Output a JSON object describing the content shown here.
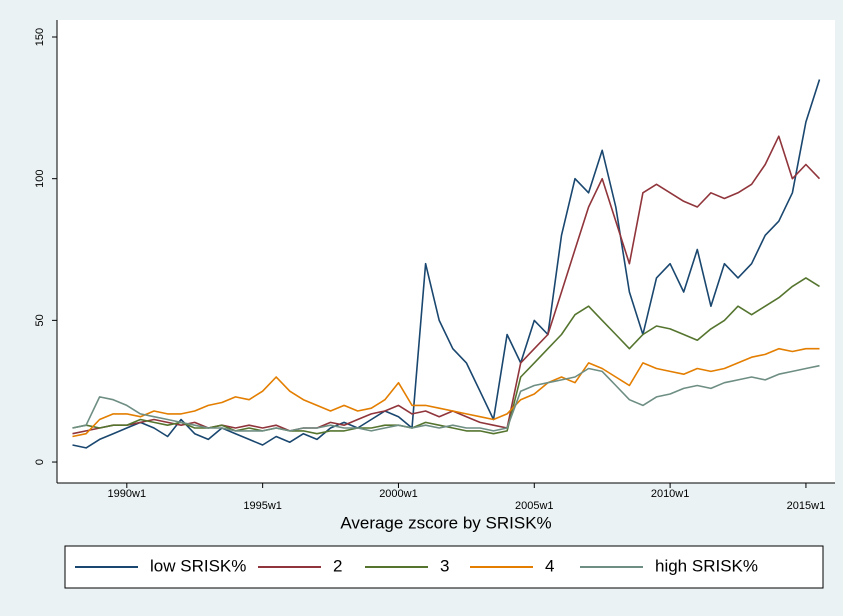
{
  "chart_data": {
    "type": "line",
    "x_title": "Average zscore by SRISK%",
    "x": [
      1988,
      1988.5,
      1989,
      1989.5,
      1990,
      1990.5,
      1991,
      1991.5,
      1992,
      1992.5,
      1993,
      1993.5,
      1994,
      1994.5,
      1995,
      1995.5,
      1996,
      1996.5,
      1997,
      1997.5,
      1998,
      1998.5,
      1999,
      1999.5,
      2000,
      2000.5,
      2001,
      2001.5,
      2002,
      2002.5,
      2003,
      2003.5,
      2004,
      2004.5,
      2005,
      2005.5,
      2006,
      2006.5,
      2007,
      2007.5,
      2008,
      2008.5,
      2009,
      2009.5,
      2010,
      2010.5,
      2011,
      2011.5,
      2012,
      2012.5,
      2013,
      2013.5,
      2014,
      2014.5,
      2015,
      2015.5
    ],
    "series": [
      {
        "name": "low SRISK%",
        "color": "#1a476f",
        "values": [
          6,
          5,
          8,
          10,
          12,
          14,
          12,
          9,
          15,
          10,
          8,
          12,
          10,
          8,
          6,
          9,
          7,
          10,
          8,
          12,
          14,
          12,
          15,
          18,
          16,
          12,
          70,
          50,
          40,
          35,
          25,
          15,
          45,
          35,
          50,
          45,
          80,
          100,
          95,
          110,
          90,
          60,
          45,
          65,
          70,
          60,
          75,
          55,
          70,
          65,
          70,
          80,
          85,
          95,
          120,
          135
        ]
      },
      {
        "name": "2",
        "color": "#90353b",
        "values": [
          10,
          11,
          12,
          13,
          13,
          14,
          15,
          14,
          13,
          14,
          12,
          13,
          12,
          13,
          12,
          13,
          11,
          12,
          12,
          14,
          13,
          15,
          17,
          18,
          20,
          17,
          18,
          16,
          18,
          16,
          14,
          13,
          12,
          35,
          40,
          45,
          60,
          75,
          90,
          100,
          85,
          70,
          95,
          98,
          95,
          92,
          90,
          95,
          93,
          95,
          98,
          105,
          115,
          100,
          105,
          100
        ]
      },
      {
        "name": "3",
        "color": "#55752f",
        "values": [
          12,
          13,
          12,
          13,
          13,
          15,
          14,
          13,
          14,
          12,
          12,
          13,
          11,
          12,
          11,
          12,
          11,
          11,
          10,
          11,
          11,
          12,
          12,
          13,
          13,
          12,
          14,
          13,
          12,
          11,
          11,
          10,
          11,
          30,
          35,
          40,
          45,
          52,
          55,
          50,
          45,
          40,
          45,
          48,
          47,
          45,
          43,
          47,
          50,
          55,
          52,
          55,
          58,
          62,
          65,
          62
        ]
      },
      {
        "name": "4",
        "color": "#e37e00",
        "values": [
          9,
          10,
          15,
          17,
          17,
          16,
          18,
          17,
          17,
          18,
          20,
          21,
          23,
          22,
          25,
          30,
          25,
          22,
          20,
          18,
          20,
          18,
          19,
          22,
          28,
          20,
          20,
          19,
          18,
          17,
          16,
          15,
          17,
          22,
          24,
          28,
          30,
          28,
          35,
          33,
          30,
          27,
          35,
          33,
          32,
          31,
          33,
          32,
          33,
          35,
          37,
          38,
          40,
          39,
          40,
          40
        ]
      },
      {
        "name": "high SRISK%",
        "color": "#6e8e84",
        "values": [
          12,
          13,
          23,
          22,
          20,
          17,
          16,
          15,
          14,
          13,
          12,
          12,
          11,
          11,
          11,
          12,
          11,
          12,
          12,
          13,
          12,
          12,
          11,
          12,
          13,
          12,
          13,
          12,
          13,
          12,
          12,
          11,
          12,
          25,
          27,
          28,
          29,
          30,
          33,
          32,
          27,
          22,
          20,
          23,
          24,
          26,
          27,
          26,
          28,
          29,
          30,
          29,
          31,
          32,
          33,
          34
        ]
      }
    ],
    "xlim": [
      1987.43,
      2016.07
    ],
    "xticks": [
      {
        "value": 1990,
        "label": "1990w1"
      },
      {
        "value": 1995,
        "label": "1995w1"
      },
      {
        "value": 2000,
        "label": "2000w1"
      },
      {
        "value": 2005,
        "label": "2005w1"
      },
      {
        "value": 2010,
        "label": "2010w1"
      },
      {
        "value": 2015,
        "label": "2015w1"
      }
    ],
    "ylim": [
      -7.4,
      156
    ],
    "yticks": [
      0,
      50,
      100,
      150
    ]
  }
}
